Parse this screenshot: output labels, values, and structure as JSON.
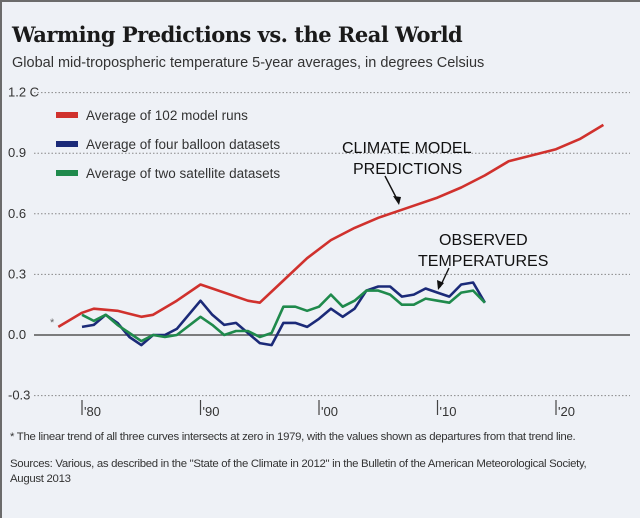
{
  "chart_data": {
    "type": "line",
    "title": "Warming Predictions vs. the Real World",
    "subtitle": "Global mid-tropospheric temperature 5-year averages, in degrees Celsius",
    "xlabel": "",
    "ylabel": "",
    "xlim": [
      1975,
      2025
    ],
    "ylim": [
      -0.3,
      1.2
    ],
    "y_ticks": [
      {
        "value": 1.2,
        "label": "1.2 C"
      },
      {
        "value": 0.9,
        "label": "0.9"
      },
      {
        "value": 0.6,
        "label": "0.6"
      },
      {
        "value": 0.3,
        "label": "0.3"
      },
      {
        "value": 0.0,
        "label": "0.0"
      },
      {
        "value": -0.3,
        "label": "-0.3"
      }
    ],
    "x_ticks": [
      {
        "value": 1980,
        "label": "'80"
      },
      {
        "value": 1990,
        "label": "'90"
      },
      {
        "value": 2000,
        "label": "'00"
      },
      {
        "value": 2010,
        "label": "'10"
      },
      {
        "value": 2020,
        "label": "'20"
      }
    ],
    "grid": "horizontal dotted",
    "legend_position": "top-left",
    "series": [
      {
        "name": "Average of 102 model runs",
        "color": "#d0312d",
        "x": [
          1978,
          1980,
          1981,
          1983,
          1985,
          1986,
          1988,
          1990,
          1991,
          1994,
          1995,
          1997,
          1999,
          2001,
          2003,
          2005,
          2008,
          2010,
          2012,
          2014,
          2016,
          2018,
          2020,
          2022,
          2024
        ],
        "y": [
          0.04,
          0.11,
          0.13,
          0.12,
          0.09,
          0.1,
          0.17,
          0.25,
          0.23,
          0.17,
          0.16,
          0.27,
          0.38,
          0.47,
          0.53,
          0.58,
          0.64,
          0.68,
          0.73,
          0.79,
          0.86,
          0.89,
          0.92,
          0.97,
          1.04
        ]
      },
      {
        "name": "Average of four balloon datasets",
        "color": "#1b2a78",
        "x": [
          1980,
          1981,
          1982,
          1983,
          1984,
          1985,
          1986,
          1987,
          1988,
          1990,
          1991,
          1992,
          1993,
          1995,
          1996,
          1997,
          1998,
          1999,
          2000,
          2001,
          2002,
          2003,
          2004,
          2005,
          2006,
          2007,
          2008,
          2009,
          2010,
          2011,
          2012,
          2013,
          2014
        ],
        "y": [
          0.04,
          0.05,
          0.1,
          0.06,
          -0.01,
          -0.05,
          0.0,
          0.0,
          0.03,
          0.17,
          0.1,
          0.05,
          0.06,
          -0.04,
          -0.05,
          0.06,
          0.06,
          0.04,
          0.08,
          0.13,
          0.09,
          0.13,
          0.22,
          0.24,
          0.24,
          0.19,
          0.2,
          0.23,
          0.21,
          0.19,
          0.25,
          0.26,
          0.16
        ]
      },
      {
        "name": "Average of two satellite datasets",
        "color": "#1f8a4c",
        "x": [
          1980,
          1981,
          1982,
          1983,
          1984,
          1985,
          1986,
          1987,
          1988,
          1990,
          1991,
          1992,
          1993,
          1994,
          1995,
          1996,
          1997,
          1998,
          1999,
          2000,
          2001,
          2002,
          2003,
          2004,
          2005,
          2006,
          2007,
          2008,
          2009,
          2010,
          2011,
          2012,
          2013,
          2014
        ],
        "y": [
          0.1,
          0.07,
          0.1,
          0.05,
          0.01,
          -0.03,
          0.0,
          -0.01,
          0.0,
          0.09,
          0.05,
          0.0,
          0.02,
          0.02,
          -0.01,
          0.01,
          0.14,
          0.14,
          0.12,
          0.14,
          0.2,
          0.14,
          0.17,
          0.22,
          0.22,
          0.2,
          0.15,
          0.15,
          0.18,
          0.17,
          0.16,
          0.21,
          0.22,
          0.16
        ]
      }
    ],
    "annotations": [
      {
        "lines": [
          "CLIMATE MODEL",
          "PREDICTIONS"
        ],
        "points_to": "Average of 102 model runs"
      },
      {
        "lines": [
          "OBSERVED",
          "TEMPERATURES"
        ],
        "points_to": "observed series"
      }
    ],
    "asterisk_marker": "*",
    "footnote": "* The linear trend of all three curves intersects at zero in 1979, with the values shown as departures from that trend line.",
    "sources": "Sources: Various, as described in the \"State of the Climate in 2012\" in the Bulletin of the American Meteorological Society, August 2013"
  }
}
